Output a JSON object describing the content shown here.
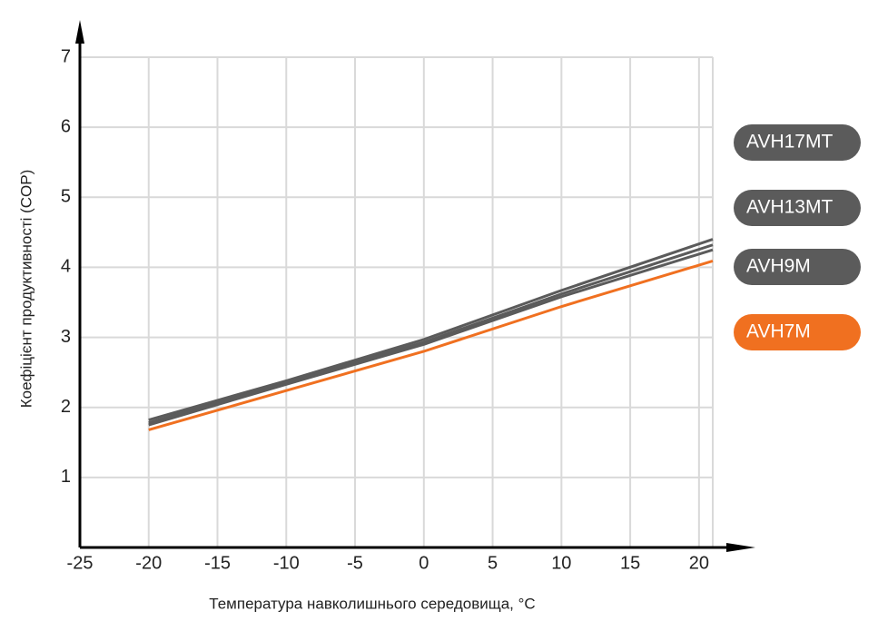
{
  "chart_data": {
    "type": "line",
    "ylabel": "Коефіцієнт продуктивності (COP)",
    "xlabel": "Температура навколишнього середовища, °C",
    "x": [
      -20,
      -10,
      0,
      10,
      21
    ],
    "series": [
      {
        "name": "AVH17MT",
        "color": "#5b5b5b",
        "values": [
          1.82,
          2.38,
          2.97,
          3.67,
          4.4
        ]
      },
      {
        "name": "AVH13MT",
        "color": "#5b5b5b",
        "values": [
          1.78,
          2.36,
          2.93,
          3.62,
          4.32
        ]
      },
      {
        "name": "AVH9M",
        "color": "#5b5b5b",
        "values": [
          1.75,
          2.33,
          2.9,
          3.58,
          4.25
        ]
      },
      {
        "name": "AVH7M",
        "color": "#f07020",
        "values": [
          1.68,
          2.24,
          2.8,
          3.44,
          4.09
        ]
      }
    ],
    "xlim": [
      -25,
      21
    ],
    "ylim": [
      0,
      7
    ],
    "xticks": [
      -25,
      -20,
      -15,
      -10,
      -5,
      0,
      5,
      10,
      15,
      20
    ],
    "yticks": [
      1,
      2,
      3,
      4,
      5,
      6,
      7
    ],
    "grid": true
  }
}
